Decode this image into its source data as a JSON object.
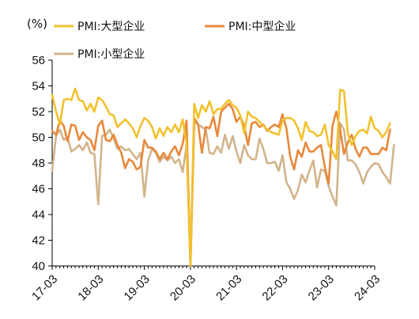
{
  "chart_data": {
    "type": "line",
    "unit_label": "(%)",
    "ylim": [
      40,
      56
    ],
    "yticks": [
      40,
      42,
      44,
      46,
      48,
      50,
      52,
      54,
      56
    ],
    "grid": false,
    "legend_position": "top",
    "x_tick_labels": [
      "17-03",
      "18-03",
      "19-03",
      "20-03",
      "21-03",
      "22-03",
      "23-03",
      "24-03"
    ],
    "x_tick_month_index": [
      0,
      12,
      24,
      36,
      48,
      60,
      72,
      84
    ],
    "x_range_months": [
      0,
      84
    ],
    "series": [
      {
        "name": "PMI:大型企业",
        "color": "#F2C12E",
        "values": [
          53.3,
          52.0,
          51.0,
          52.9,
          53.0,
          52.9,
          53.8,
          52.9,
          52.8,
          52.1,
          52.6,
          52.0,
          53.1,
          52.9,
          52.4,
          51.8,
          51.7,
          50.8,
          51.1,
          51.4,
          51.1,
          50.7,
          50.0,
          50.9,
          51.5,
          51.3,
          50.8,
          49.9,
          50.7,
          50.1,
          50.8,
          50.4,
          51.0,
          50.4,
          51.4,
          49.5,
          40.0,
          52.6,
          51.5,
          52.5,
          52.0,
          52.8,
          51.8,
          52.2,
          52.2,
          52.6,
          52.9,
          52.5,
          52.3,
          51.7,
          50.3,
          52.0,
          51.6,
          51.5,
          51.2,
          50.9,
          50.6,
          50.4,
          50.3,
          50.2,
          51.3,
          51.5,
          51.5,
          51.3,
          50.7,
          49.8,
          51.2,
          50.5,
          50.4,
          50.1,
          50.2,
          51.0,
          49.4,
          48.9,
          48.3,
          53.7,
          53.6,
          50.3,
          49.4,
          50.1,
          50.5,
          50.6,
          50.3,
          51.6,
          50.7,
          50.5,
          50.0,
          50.4,
          51.1
        ]
      },
      {
        "name": "PMI:中型企业",
        "color": "#E8893B",
        "values": [
          50.5,
          50.2,
          51.3,
          50.9,
          49.7,
          51.0,
          50.9,
          49.8,
          50.4,
          50.0,
          49.8,
          49.0,
          50.9,
          51.3,
          49.8,
          49.7,
          50.2,
          49.4,
          48.8,
          47.6,
          48.3,
          48.1,
          47.5,
          47.7,
          49.8,
          49.2,
          49.2,
          48.9,
          48.3,
          48.8,
          48.3,
          48.9,
          49.3,
          48.6,
          49.5,
          51.3,
          40.0,
          51.5,
          51.0,
          48.8,
          50.8,
          50.7,
          51.6,
          50.1,
          52.0,
          52.3,
          52.6,
          52.2,
          51.2,
          51.6,
          50.9,
          49.4,
          51.1,
          51.2,
          50.8,
          51.0,
          50.5,
          50.8,
          51.0,
          50.8,
          51.8,
          50.7,
          48.5,
          47.5,
          49.0,
          48.5,
          49.6,
          48.9,
          48.9,
          49.2,
          49.4,
          47.7,
          46.4,
          50.9,
          52.0,
          50.6,
          48.7,
          49.6,
          50.2,
          49.1,
          48.5,
          49.2,
          49.2,
          48.7,
          48.7,
          48.7,
          49.2,
          49.0,
          50.6
        ]
      },
      {
        "name": "PMI:小型企业",
        "color": "#D2B48C",
        "values": [
          47.4,
          50.1,
          50.6,
          49.8,
          50.0,
          48.9,
          49.1,
          49.4,
          49.0,
          49.6,
          48.8,
          48.7,
          44.8,
          50.1,
          50.2,
          50.6,
          49.9,
          49.1,
          49.3,
          49.0,
          49.1,
          48.7,
          48.3,
          48.8,
          45.4,
          48.2,
          49.1,
          48.8,
          48.1,
          48.5,
          48.2,
          48.5,
          48.0,
          48.3,
          47.3,
          49.4,
          40.0,
          51.2,
          51.0,
          50.8,
          50.6,
          48.8,
          48.7,
          49.3,
          48.8,
          50.2,
          49.1,
          50.1,
          48.9,
          48.0,
          49.4,
          48.6,
          48.3,
          48.3,
          49.9,
          49.1,
          48.0,
          48.0,
          48.1,
          47.4,
          48.6,
          46.5,
          46.0,
          45.2,
          45.9,
          47.1,
          46.5,
          47.4,
          48.2,
          46.1,
          47.5,
          47.4,
          46.2,
          45.4,
          44.7,
          51.1,
          50.6,
          48.2,
          48.2,
          47.9,
          47.3,
          46.4,
          47.3,
          47.7,
          48.0,
          47.9,
          47.3,
          46.9,
          46.4,
          49.4
        ]
      }
    ]
  }
}
